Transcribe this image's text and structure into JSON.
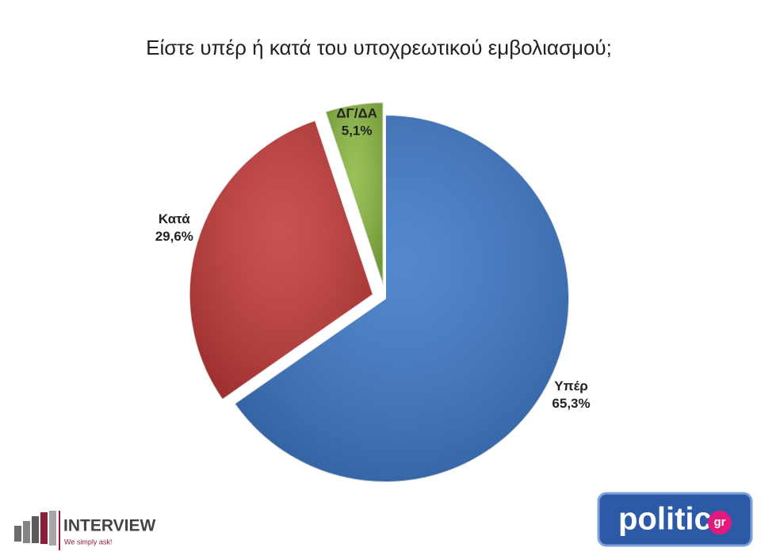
{
  "chart_data": {
    "type": "pie",
    "title": "Είστε υπέρ ή κατά του υποχρεωτικού εμβολιασμού;",
    "categories": [
      "Υπέρ",
      "Κατά",
      "ΔΓ/ΔΑ"
    ],
    "values": [
      65.3,
      29.6,
      5.1
    ],
    "value_labels": [
      "65,3%",
      "29,6%",
      "5,1%"
    ],
    "colors": [
      "#3d78c6",
      "#c23b3a",
      "#8bb943"
    ]
  },
  "branding": {
    "left": "INTERVIEW",
    "left_tagline": "We simply ask!",
    "right": "politic",
    "right_suffix": "gr"
  }
}
